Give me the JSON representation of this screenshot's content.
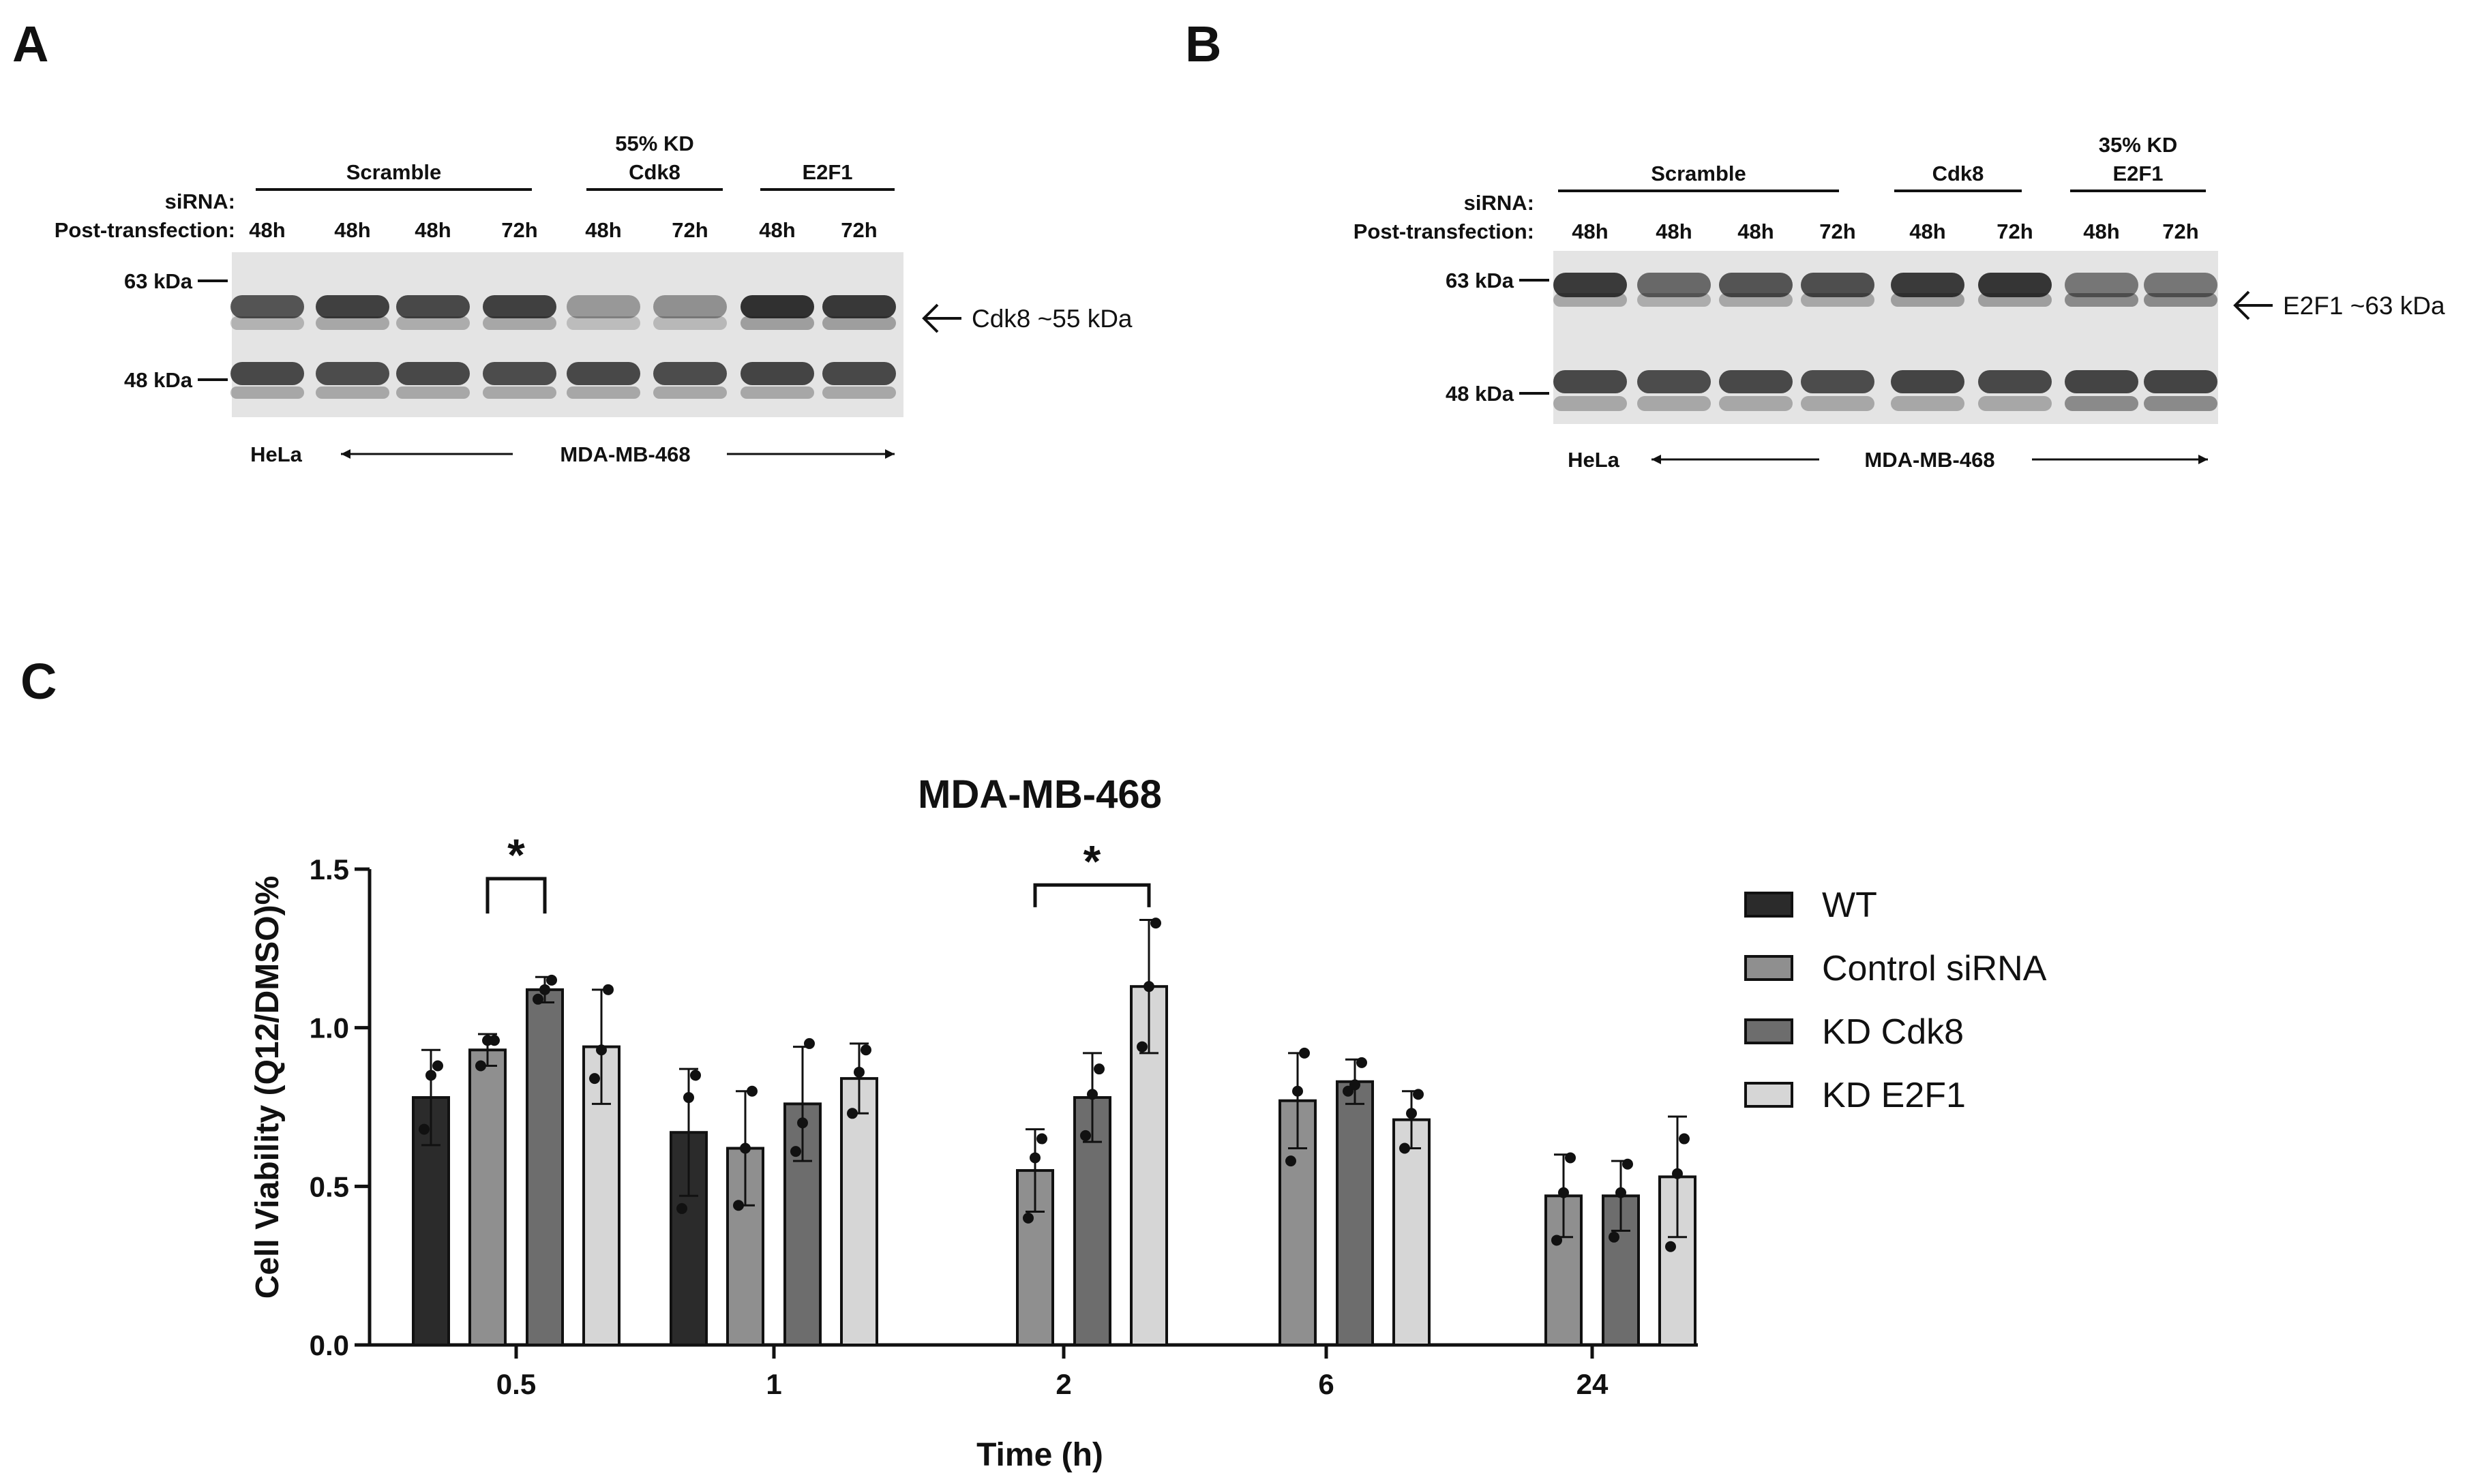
{
  "panel_a": {
    "letter": "A",
    "row_labels": {
      "sirna": "siRNA:",
      "post": "Post-transfection:"
    },
    "groups": [
      {
        "top": "",
        "label": "Scramble"
      },
      {
        "top": "55% KD",
        "label": "Cdk8"
      },
      {
        "top": "",
        "label": "E2F1"
      }
    ],
    "lanes": [
      "48h",
      "48h",
      "48h",
      "72h",
      "48h",
      "72h",
      "48h",
      "72h"
    ],
    "markers": [
      "63 kDa",
      "48 kDa"
    ],
    "arrow_label": "Cdk8 ~55 kDa",
    "cell_lines": {
      "left": "HeLa",
      "right": "MDA-MB-468"
    }
  },
  "panel_b": {
    "letter": "B",
    "row_labels": {
      "sirna": "siRNA:",
      "post": "Post-transfection:"
    },
    "groups": [
      {
        "top": "",
        "label": "Scramble"
      },
      {
        "top": "",
        "label": "Cdk8"
      },
      {
        "top": "35% KD",
        "label": "E2F1"
      }
    ],
    "lanes": [
      "48h",
      "48h",
      "48h",
      "72h",
      "48h",
      "72h",
      "48h",
      "72h"
    ],
    "markers": [
      "63 kDa",
      "48 kDa"
    ],
    "arrow_label": "E2F1 ~63 kDa",
    "cell_lines": {
      "left": "HeLa",
      "right": "MDA-MB-468"
    }
  },
  "panel_c": {
    "letter": "C",
    "colors": {
      "WT": "#2b2b2b",
      "Control siRNA": "#8f8f8f",
      "KD Cdk8": "#6d6d6d",
      "KD E2F1": "#d6d6d6"
    }
  },
  "chart_data": {
    "type": "bar",
    "title": "MDA-MB-468",
    "xlabel": "Time (h)",
    "ylabel": "Cell Viability (Q12/DMSO)%",
    "ylim": [
      0,
      1.5
    ],
    "yticks": [
      "0.0",
      "0.5",
      "1.0",
      "1.5"
    ],
    "categories": [
      "0.5",
      "1",
      "2",
      "6",
      "24"
    ],
    "legend_position": "right",
    "series": [
      {
        "name": "WT",
        "values": [
          0.78,
          0.67,
          null,
          null,
          null
        ],
        "errors": [
          0.15,
          0.2,
          null,
          null,
          null
        ],
        "points": [
          [
            0.68,
            0.85,
            0.88
          ],
          [
            0.43,
            0.78,
            0.85
          ],
          [],
          [],
          []
        ]
      },
      {
        "name": "Control siRNA",
        "values": [
          0.93,
          0.62,
          0.55,
          0.77,
          0.47
        ],
        "errors": [
          0.05,
          0.18,
          0.13,
          0.15,
          0.13
        ],
        "points": [
          [
            0.88,
            0.96,
            0.96
          ],
          [
            0.44,
            0.62,
            0.8
          ],
          [
            0.4,
            0.59,
            0.65
          ],
          [
            0.58,
            0.8,
            0.92
          ],
          [
            0.33,
            0.48,
            0.59
          ]
        ]
      },
      {
        "name": "KD Cdk8",
        "values": [
          1.12,
          0.76,
          0.78,
          0.83,
          0.47
        ],
        "errors": [
          0.04,
          0.18,
          0.14,
          0.07,
          0.11
        ],
        "points": [
          [
            1.09,
            1.12,
            1.15
          ],
          [
            0.61,
            0.7,
            0.95
          ],
          [
            0.66,
            0.79,
            0.87
          ],
          [
            0.8,
            0.82,
            0.89
          ],
          [
            0.34,
            0.48,
            0.57
          ]
        ]
      },
      {
        "name": "KD E2F1",
        "values": [
          0.94,
          0.84,
          1.13,
          0.71,
          0.53
        ],
        "errors": [
          0.18,
          0.11,
          0.21,
          0.09,
          0.19
        ],
        "points": [
          [
            0.84,
            0.93,
            1.12
          ],
          [
            0.73,
            0.86,
            0.93
          ],
          [
            0.94,
            1.13,
            1.33
          ],
          [
            0.62,
            0.73,
            0.79
          ],
          [
            0.31,
            0.54,
            0.65
          ]
        ]
      }
    ],
    "significance": [
      {
        "category": "0.5",
        "from": "Control siRNA",
        "to": "KD Cdk8",
        "label": "*"
      },
      {
        "category": "2",
        "from": "Control siRNA",
        "to": "KD E2F1",
        "label": "*"
      }
    ]
  }
}
